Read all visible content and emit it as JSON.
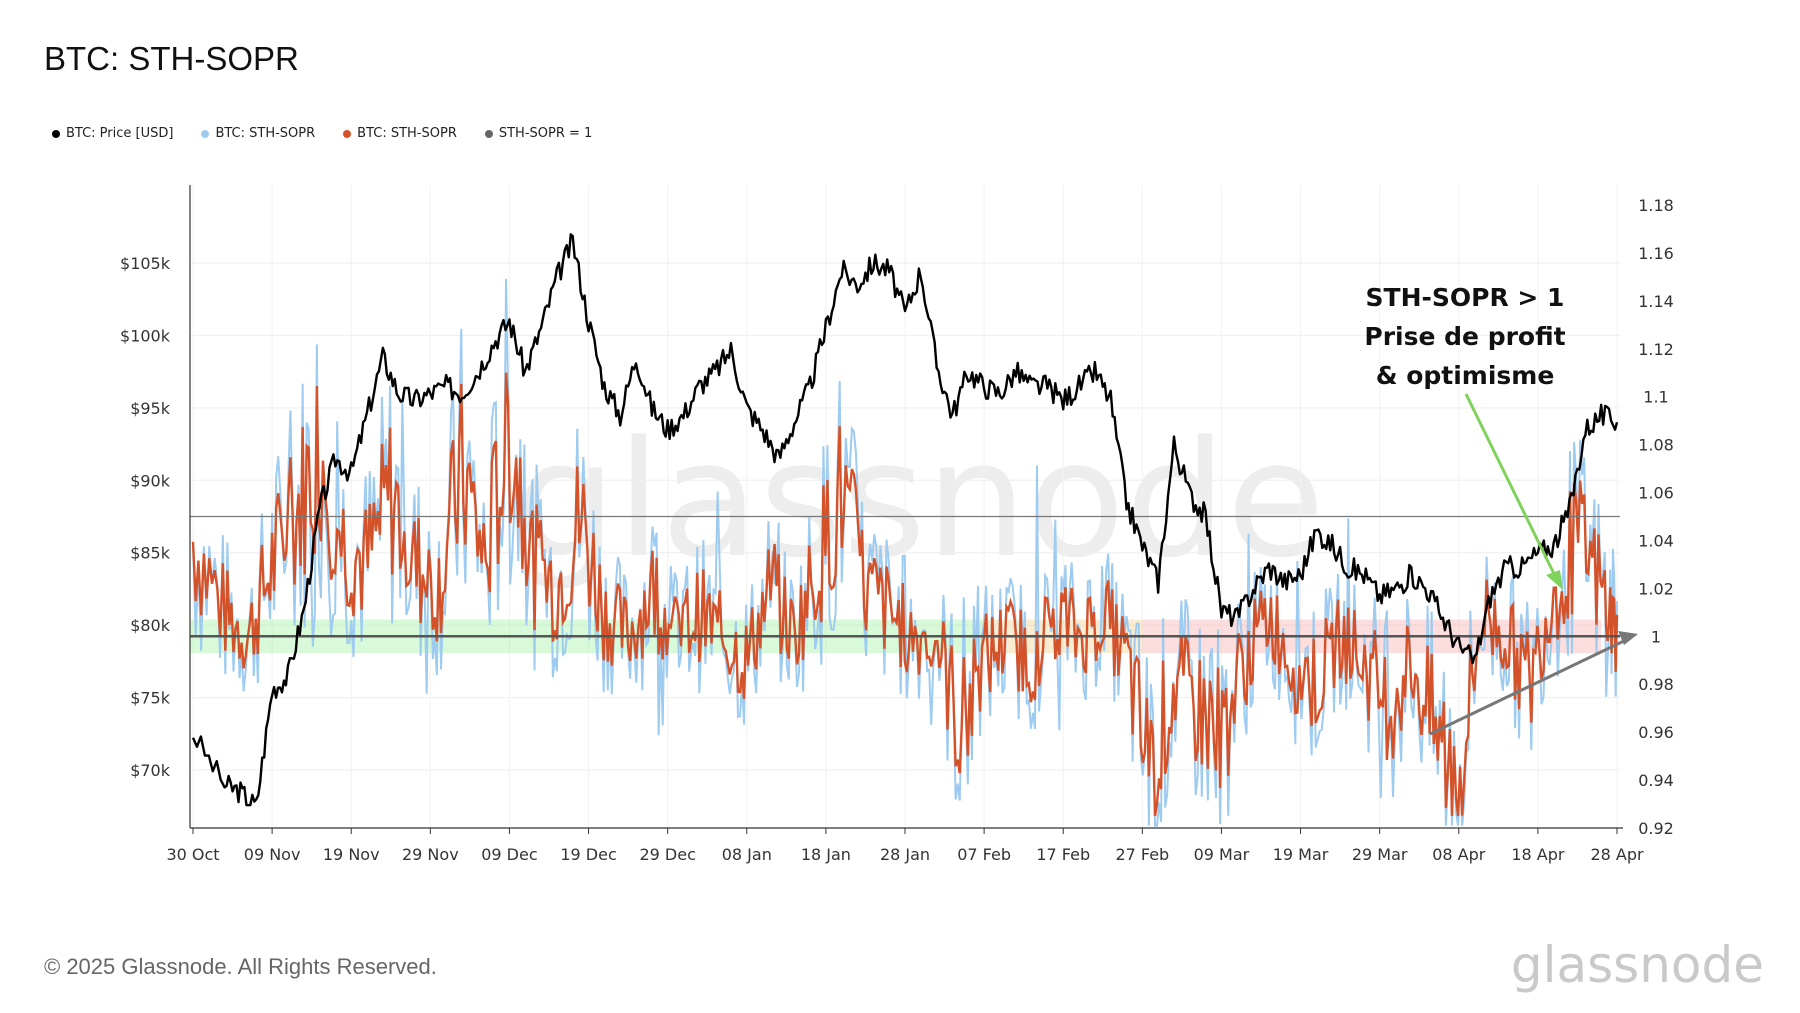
{
  "title": "BTC: STH-SOPR",
  "legend": [
    {
      "label": "BTC: Price [USD]",
      "color": "#000000"
    },
    {
      "label": "BTC: STH-SOPR",
      "color": "#9ecbf0"
    },
    {
      "label": "BTC: STH-SOPR",
      "color": "#d4522a"
    },
    {
      "label": "STH-SOPR = 1",
      "color": "#666666"
    }
  ],
  "footer": "© 2025 Glassnode. All Rights Reserved.",
  "brand": "glassnode",
  "watermark": "glassnode",
  "annotation": [
    "STH-SOPR > 1",
    "Prise de profit",
    "& optimisme"
  ],
  "chart_data": {
    "type": "line",
    "x_ticks": [
      "30 Oct",
      "09 Nov",
      "19 Nov",
      "29 Nov",
      "09 Dec",
      "19 Dec",
      "29 Dec",
      "08 Jan",
      "18 Jan",
      "28 Jan",
      "07 Feb",
      "17 Feb",
      "27 Feb",
      "09 Mar",
      "19 Mar",
      "29 Mar",
      "08 Apr",
      "18 Apr",
      "28 Apr"
    ],
    "y_left_ticks": [
      {
        "value": 70000,
        "label": "$70k"
      },
      {
        "value": 75000,
        "label": "$75k"
      },
      {
        "value": 80000,
        "label": "$80k"
      },
      {
        "value": 85000,
        "label": "$85k"
      },
      {
        "value": 90000,
        "label": "$90k"
      },
      {
        "value": 95000,
        "label": "$95k"
      },
      {
        "value": 100000,
        "label": "$100k"
      },
      {
        "value": 105000,
        "label": "$105k"
      }
    ],
    "y_right_ticks": [
      {
        "value": 0.92,
        "label": "0.92"
      },
      {
        "value": 0.94,
        "label": "0.94"
      },
      {
        "value": 0.96,
        "label": "0.96"
      },
      {
        "value": 0.98,
        "label": "0.98"
      },
      {
        "value": 1.0,
        "label": "1"
      },
      {
        "value": 1.02,
        "label": "1.02"
      },
      {
        "value": 1.04,
        "label": "1.04"
      },
      {
        "value": 1.06,
        "label": "1.06"
      },
      {
        "value": 1.08,
        "label": "1.08"
      },
      {
        "value": 1.1,
        "label": "1.1"
      },
      {
        "value": 1.12,
        "label": "1.12"
      },
      {
        "value": 1.14,
        "label": "1.14"
      },
      {
        "value": 1.16,
        "label": "1.16"
      },
      {
        "value": 1.18,
        "label": "1.18"
      }
    ],
    "y_left_range": [
      66000,
      109000
    ],
    "y_right_range": [
      0.92,
      1.18
    ],
    "reference_line": 1.0,
    "price_series": {
      "name": "BTC: Price [USD]",
      "color": "#000000",
      "x": [
        "30 Oct",
        "03 Nov",
        "05 Nov",
        "07 Nov",
        "09 Nov",
        "11 Nov",
        "13 Nov",
        "15 Nov",
        "17 Nov",
        "19 Nov",
        "21 Nov",
        "23 Nov",
        "25 Nov",
        "27 Nov",
        "29 Nov",
        "01 Dec",
        "03 Dec",
        "05 Dec",
        "07 Dec",
        "09 Dec",
        "11 Dec",
        "13 Dec",
        "15 Dec",
        "17 Dec",
        "19 Dec",
        "21 Dec",
        "23 Dec",
        "25 Dec",
        "27 Dec",
        "29 Dec",
        "31 Dec",
        "02 Jan",
        "04 Jan",
        "06 Jan",
        "08 Jan",
        "10 Jan",
        "12 Jan",
        "14 Jan",
        "16 Jan",
        "18 Jan",
        "20 Jan",
        "22 Jan",
        "24 Jan",
        "26 Jan",
        "28 Jan",
        "30 Jan",
        "01 Feb",
        "03 Feb",
        "05 Feb",
        "07 Feb",
        "09 Feb",
        "11 Feb",
        "13 Feb",
        "15 Feb",
        "17 Feb",
        "19 Feb",
        "21 Feb",
        "23 Feb",
        "25 Feb",
        "27 Feb",
        "01 Mar",
        "03 Mar",
        "05 Mar",
        "07 Mar",
        "09 Mar",
        "11 Mar",
        "13 Mar",
        "15 Mar",
        "17 Mar",
        "19 Mar",
        "21 Mar",
        "23 Mar",
        "25 Mar",
        "27 Mar",
        "29 Mar",
        "31 Mar",
        "02 Apr",
        "04 Apr",
        "06 Apr",
        "08 Apr",
        "10 Apr",
        "12 Apr",
        "14 Apr",
        "16 Apr",
        "18 Apr",
        "20 Apr",
        "22 Apr",
        "24 Apr",
        "26 Apr",
        "28 Apr"
      ],
      "values": [
        72500,
        69000,
        68500,
        67500,
        75500,
        76500,
        81000,
        88000,
        91500,
        90500,
        94500,
        98500,
        96000,
        95500,
        96000,
        96500,
        96000,
        97500,
        99500,
        101000,
        97500,
        100500,
        104000,
        106500,
        101000,
        96500,
        94500,
        98500,
        95000,
        93500,
        94500,
        96500,
        97500,
        99000,
        95000,
        93500,
        91500,
        94000,
        96500,
        100500,
        104500,
        103500,
        105000,
        104500,
        101500,
        104500,
        98000,
        94500,
        97500,
        96500,
        96000,
        97500,
        96500,
        96500,
        95500,
        96500,
        97500,
        95500,
        88500,
        85500,
        83000,
        92500,
        89000,
        87500,
        81000,
        80500,
        82500,
        84000,
        83000,
        83500,
        86500,
        85500,
        84000,
        83500,
        82000,
        82500,
        83500,
        82500,
        80500,
        78500,
        77500,
        82000,
        84000,
        84000,
        85000,
        85500,
        88000,
        93500,
        94500,
        94000
      ]
    },
    "sopr_series": {
      "name": "BTC: STH-SOPR",
      "colors": {
        "raw": "#9ecbf0",
        "smoothed": "#d4522a"
      },
      "x": [
        "30 Oct",
        "03 Nov",
        "06 Nov",
        "09 Nov",
        "12 Nov",
        "15 Nov",
        "18 Nov",
        "21 Nov",
        "24 Nov",
        "27 Nov",
        "30 Nov",
        "03 Dec",
        "06 Dec",
        "09 Dec",
        "12 Dec",
        "15 Dec",
        "18 Dec",
        "21 Dec",
        "24 Dec",
        "27 Dec",
        "30 Dec",
        "02 Jan",
        "05 Jan",
        "08 Jan",
        "11 Jan",
        "14 Jan",
        "17 Jan",
        "20 Jan",
        "23 Jan",
        "26 Jan",
        "29 Jan",
        "01 Feb",
        "04 Feb",
        "07 Feb",
        "10 Feb",
        "13 Feb",
        "16 Feb",
        "19 Feb",
        "22 Feb",
        "25 Feb",
        "28 Feb",
        "03 Mar",
        "06 Mar",
        "09 Mar",
        "12 Mar",
        "15 Mar",
        "18 Mar",
        "21 Mar",
        "24 Mar",
        "27 Mar",
        "30 Mar",
        "02 Apr",
        "05 Apr",
        "08 Apr",
        "11 Apr",
        "14 Apr",
        "17 Apr",
        "20 Apr",
        "23 Apr",
        "26 Apr",
        "28 Apr"
      ],
      "values": [
        1.04,
        1.01,
        1.0,
        1.03,
        1.05,
        1.08,
        1.04,
        1.03,
        1.06,
        1.03,
        1.02,
        1.07,
        1.03,
        1.09,
        1.03,
        1.02,
        1.05,
        1.01,
        1.0,
        1.02,
        1.0,
        1.01,
        1.0,
        0.99,
        1.02,
        1.0,
        1.03,
        1.06,
        1.02,
        1.01,
        1.0,
        1.0,
        0.96,
        0.99,
        1.0,
        0.99,
        1.01,
        1.0,
        1.01,
        0.99,
        0.94,
        0.98,
        0.97,
        0.96,
        0.99,
        1.01,
        0.99,
        0.98,
        1.0,
        0.99,
        0.97,
        0.99,
        0.96,
        0.94,
        1.01,
        1.0,
        0.98,
        1.02,
        1.04,
        1.02,
        1.0
      ]
    }
  }
}
